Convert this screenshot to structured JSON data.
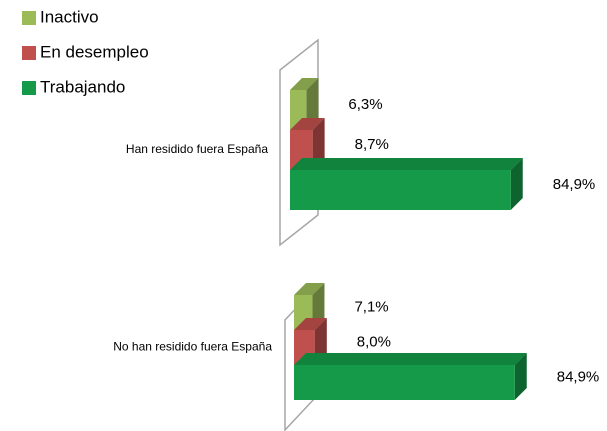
{
  "chart_data": {
    "type": "bar3d_horizontal",
    "categories": [
      "Han residido fuera España",
      "No han residido fuera España"
    ],
    "series": [
      {
        "name": "Inactivo",
        "color": "#9bbb59",
        "values": [
          6.3,
          7.1
        ],
        "value_labels": [
          "6,3%",
          "7,1%"
        ]
      },
      {
        "name": "En desempleo",
        "color": "#c0504d",
        "values": [
          8.7,
          8.0
        ],
        "value_labels": [
          "8,7%",
          "8,0%"
        ]
      },
      {
        "name": "Trabajando",
        "color": "#149a48",
        "values": [
          84.9,
          84.9
        ],
        "value_labels": [
          "84,9%",
          "84,9%"
        ]
      }
    ]
  }
}
